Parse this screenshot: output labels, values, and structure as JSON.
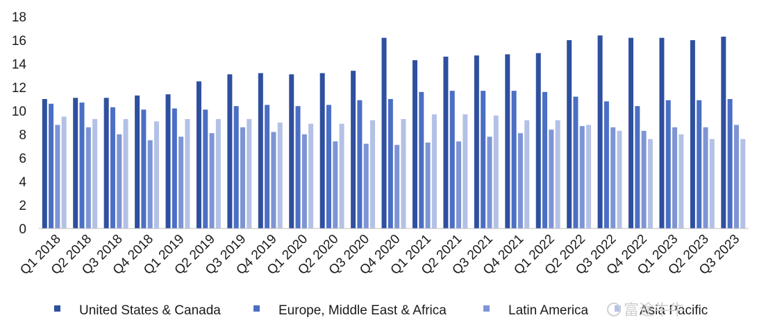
{
  "chart_data": {
    "type": "bar",
    "title": "",
    "xlabel": "",
    "ylabel": "",
    "ylim": [
      0,
      18
    ],
    "yticks": [
      0,
      2,
      4,
      6,
      8,
      10,
      12,
      14,
      16,
      18
    ],
    "grid": false,
    "legend_position": "bottom",
    "categories": [
      "Q1 2018",
      "Q2 2018",
      "Q3 2018",
      "Q4 2018",
      "Q1 2019",
      "Q2 2019",
      "Q3 2019",
      "Q4 2019",
      "Q1 2020",
      "Q2 2020",
      "Q3 2020",
      "Q4 2020",
      "Q1 2021",
      "Q2 2021",
      "Q3 2021",
      "Q4 2021",
      "Q1 2022",
      "Q2 2022",
      "Q3 2022",
      "Q4 2022",
      "Q1 2023",
      "Q2 2023",
      "Q3 2023"
    ],
    "series": [
      {
        "name": "United States & Canada",
        "color": "#2f4f9f",
        "values": [
          11.0,
          11.1,
          11.1,
          11.3,
          11.4,
          12.5,
          13.1,
          13.2,
          13.1,
          13.2,
          13.4,
          16.2,
          14.3,
          14.6,
          14.7,
          14.8,
          14.9,
          16.0,
          16.4,
          16.2,
          16.2,
          16.0,
          16.3
        ]
      },
      {
        "name": "Europe, Middle East & Africa",
        "color": "#4b6fc4",
        "values": [
          10.6,
          10.7,
          10.3,
          10.1,
          10.2,
          10.1,
          10.4,
          10.5,
          10.4,
          10.5,
          10.9,
          11.0,
          11.6,
          11.7,
          11.7,
          11.7,
          11.6,
          11.2,
          10.8,
          10.4,
          10.9,
          10.9,
          11.0
        ]
      },
      {
        "name": "Latin America",
        "color": "#7e95d4",
        "values": [
          8.8,
          8.6,
          8.0,
          7.5,
          7.8,
          8.1,
          8.6,
          8.2,
          8.0,
          7.4,
          7.2,
          7.1,
          7.3,
          7.4,
          7.8,
          8.1,
          8.4,
          8.7,
          8.6,
          8.3,
          8.6,
          8.6,
          8.8
        ]
      },
      {
        "name": "Asia Pacific",
        "color": "#b4c1e6",
        "values": [
          9.5,
          9.3,
          9.3,
          9.1,
          9.3,
          9.3,
          9.3,
          9.0,
          8.9,
          8.9,
          9.2,
          9.3,
          9.7,
          9.7,
          9.6,
          9.2,
          9.2,
          8.8,
          8.3,
          7.6,
          8.0,
          7.6,
          7.6
        ]
      }
    ]
  },
  "watermark": "富途牛牛"
}
